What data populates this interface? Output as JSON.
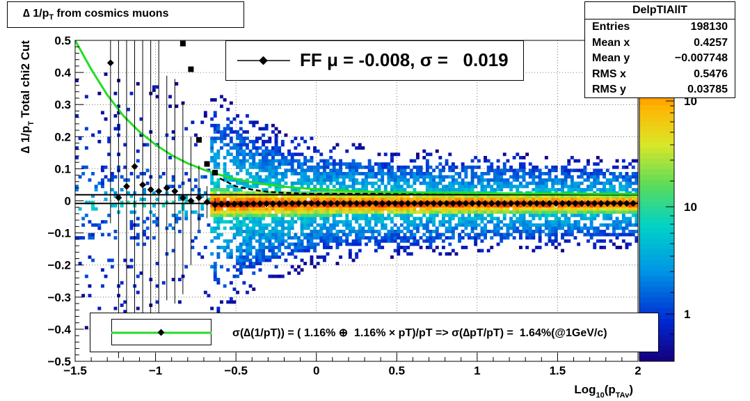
{
  "title": "∆ 1/p_T from cosmics muons",
  "stats_box": {
    "name": "DelpTIAllT",
    "rows": [
      {
        "label": "Entries",
        "value": "198130"
      },
      {
        "label": "Mean x",
        "value": "0.4257"
      },
      {
        "label": "Mean y",
        "value": "−0.007748"
      },
      {
        "label": "RMS x",
        "value": "0.5476"
      },
      {
        "label": "RMS y",
        "value": "0.03785"
      }
    ]
  },
  "legend_ff": "FF μ = -0.008, σ =   0.019",
  "legend_fit": "σ(∆(1/pT)) = ( 1.16% ⊕  1.16% × pT)/pT => σ(∆pT/pT) =  1.64%(@1GeV/c)",
  "chart_data": {
    "type": "heatmap",
    "xlabel": "Log_10(p_TAv)",
    "ylabel": "∆ 1/p_T Total chi2 Cut",
    "xlim": [
      -1.5,
      2
    ],
    "ylim": [
      -0.5,
      0.5
    ],
    "xticks": [
      "−1.5",
      "−1",
      "−0.5",
      "0",
      "0.5",
      "1",
      "1.5",
      "2"
    ],
    "yticks": [
      "−0.5",
      "−0.4",
      "−0.3",
      "−0.2",
      "−0.1",
      "0",
      "0.1",
      "0.2",
      "0.3",
      "0.4",
      "0.5"
    ],
    "z_scale": "log",
    "colorbar_labels": [
      "1",
      "10",
      "10"
    ],
    "grid": true,
    "band": {
      "description_points_x": [
        -1.5,
        -1.0,
        -0.6,
        -0.3,
        0.0,
        0.5,
        1.0,
        1.5,
        2.0
      ],
      "core_half_width_y": [
        0.02,
        0.02,
        0.02,
        0.018,
        0.017,
        0.016,
        0.015,
        0.014,
        0.013
      ],
      "tail_half_width_y": [
        0.42,
        0.4,
        0.35,
        0.25,
        0.2,
        0.17,
        0.16,
        0.15,
        0.14
      ]
    },
    "series": [
      {
        "name": "FF",
        "kind": "profile_mean",
        "x": [
          -1.28,
          -1.23,
          -1.18,
          -1.13,
          -1.08,
          -1.03,
          -0.98,
          -0.93,
          -0.88,
          -0.83,
          -0.78,
          -0.73,
          -0.68,
          -0.63,
          -0.59,
          -0.55,
          -0.51,
          -0.47,
          -0.43,
          -0.39,
          -0.35,
          -0.31,
          -0.27,
          -0.23,
          -0.19,
          -0.15,
          -0.11,
          -0.07,
          -0.03,
          0.01,
          0.05,
          0.09,
          0.13,
          0.17,
          0.21,
          0.25,
          0.29,
          0.33,
          0.37,
          0.41,
          0.45,
          0.49,
          0.53,
          0.57,
          0.61,
          0.65,
          0.69,
          0.73,
          0.77,
          0.81,
          0.85,
          0.89,
          0.93,
          0.97,
          1.01,
          1.05,
          1.09,
          1.13,
          1.17,
          1.21,
          1.25,
          1.29,
          1.33,
          1.37,
          1.41,
          1.45,
          1.49,
          1.53,
          1.57,
          1.61,
          1.65,
          1.69,
          1.73,
          1.77,
          1.81,
          1.85,
          1.89,
          1.93,
          1.97
        ],
        "y": [
          0.43,
          0.01,
          0.045,
          0.107,
          0.05,
          0.035,
          0.03,
          0.04,
          0.03,
          0.009,
          0.0,
          0.01,
          -0.004,
          -0.012,
          -0.01,
          -0.01,
          -0.01,
          -0.01,
          -0.01,
          -0.009,
          -0.009,
          -0.009,
          -0.009,
          -0.009,
          -0.008,
          -0.008,
          -0.008,
          -0.008,
          -0.008,
          -0.008,
          -0.008,
          -0.008,
          -0.008,
          -0.008,
          -0.008,
          -0.008,
          -0.008,
          -0.008,
          -0.008,
          -0.008,
          -0.008,
          -0.008,
          -0.008,
          -0.008,
          -0.008,
          -0.008,
          -0.008,
          -0.008,
          -0.008,
          -0.008,
          -0.008,
          -0.008,
          -0.008,
          -0.008,
          -0.008,
          -0.008,
          -0.008,
          -0.008,
          -0.008,
          -0.008,
          -0.008,
          -0.008,
          -0.008,
          -0.008,
          -0.008,
          -0.008,
          -0.008,
          -0.008,
          -0.008,
          -0.008,
          -0.008,
          -0.008,
          -0.008,
          -0.008,
          -0.008,
          -0.008,
          -0.008,
          -0.008,
          -0.008
        ],
        "yerr": [
          0.5,
          0.5,
          0.5,
          0.5,
          0.5,
          0.5,
          0.5,
          0.35,
          0.35,
          0.3,
          0.2,
          0.1,
          0.05,
          0.02,
          0.01,
          0.005,
          0.005,
          0.005,
          0.005,
          0.005,
          0.005,
          0.005,
          0.005,
          0.005,
          0.005,
          0.005,
          0.005,
          0.005,
          0.005,
          0.005,
          0.005,
          0.005,
          0.005,
          0.005,
          0.005,
          0.005,
          0.005,
          0.005,
          0.005,
          0.005,
          0.005,
          0.005,
          0.005,
          0.005,
          0.005,
          0.005,
          0.005,
          0.005,
          0.005,
          0.005,
          0.005,
          0.005,
          0.005,
          0.005,
          0.005,
          0.005,
          0.005,
          0.005,
          0.005,
          0.005,
          0.005,
          0.005,
          0.005,
          0.005,
          0.005,
          0.005,
          0.005,
          0.005,
          0.005,
          0.005,
          0.005,
          0.005,
          0.005,
          0.005,
          0.005,
          0.005,
          0.005,
          0.005,
          0.005
        ]
      },
      {
        "kind": "profile_rms_squares",
        "x": [
          -0.83,
          -0.78,
          -0.73,
          -0.68,
          -0.63
        ],
        "y": [
          0.49,
          0.41,
          0.19,
          0.115,
          0.088
        ]
      },
      {
        "kind": "resolution_dashed",
        "x": [
          -0.6,
          -0.5,
          -0.4,
          -0.3,
          -0.2,
          -0.1,
          0.0,
          0.25,
          0.5,
          0.75,
          1.0,
          1.25,
          1.5,
          1.75,
          2.0
        ],
        "y": [
          0.07,
          0.045,
          0.035,
          0.028,
          0.025,
          0.023,
          0.022,
          0.022,
          0.022,
          0.022,
          0.022,
          0.022,
          0.022,
          0.022,
          0.022
        ]
      },
      {
        "kind": "resolution_fit_green",
        "x": [
          -1.5,
          -1.4,
          -1.3,
          -1.2,
          -1.1,
          -1.0,
          -0.9,
          -0.8,
          -0.7,
          -0.6,
          -0.5,
          -0.4,
          -0.3,
          -0.2,
          -0.1,
          0.0,
          0.25,
          0.5,
          0.75,
          1.0,
          1.25,
          1.5,
          1.75,
          2.0
        ],
        "y": [
          0.5,
          0.41,
          0.33,
          0.265,
          0.215,
          0.175,
          0.142,
          0.117,
          0.097,
          0.081,
          0.068,
          0.058,
          0.05,
          0.044,
          0.04,
          0.036,
          0.03,
          0.027,
          0.025,
          0.024,
          0.023,
          0.023,
          0.022,
          0.022
        ]
      },
      {
        "kind": "horizontal_lines",
        "y": [
          0.019,
          -0.008
        ]
      }
    ]
  }
}
